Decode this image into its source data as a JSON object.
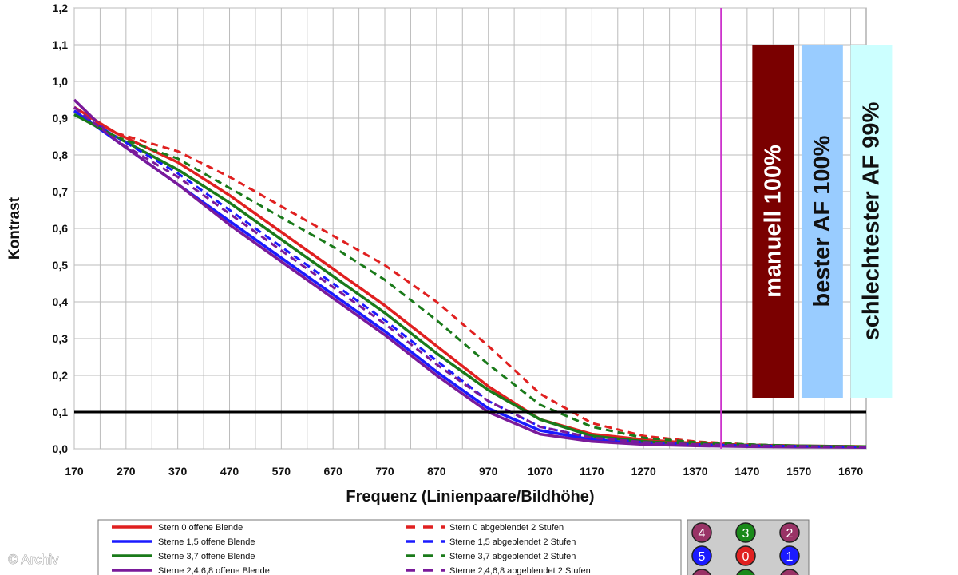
{
  "credit": "© Archiv",
  "chart_data": {
    "type": "line",
    "title": "",
    "xlabel": "Frequenz (Linienpaare/Bildhöhe)",
    "ylabel": "Kontrast",
    "xlim": [
      170,
      1700
    ],
    "ylim": [
      0,
      1.2
    ],
    "x_ticks": [
      "170",
      "270",
      "370",
      "470",
      "570",
      "670",
      "770",
      "870",
      "970",
      "1070",
      "1170",
      "1270",
      "1370",
      "1470",
      "1570",
      "1670"
    ],
    "y_ticks": [
      "0,0",
      "0,1",
      "0,2",
      "0,3",
      "0,4",
      "0,5",
      "0,6",
      "0,7",
      "0,8",
      "0,9",
      "1,0",
      "1,1",
      "1,2"
    ],
    "grid": true,
    "threshold_line": {
      "y": 0.1,
      "color": "#000000"
    },
    "marker_line": {
      "x": 1420,
      "color": "#cc33cc"
    },
    "series": [
      {
        "name": "Stern 0 offene Blende",
        "color": "#e02020",
        "dashed": false,
        "x": [
          170,
          250,
          370,
          470,
          570,
          670,
          770,
          870,
          970,
          1070,
          1170,
          1270,
          1370,
          1470,
          1570,
          1700
        ],
        "y": [
          0.93,
          0.86,
          0.78,
          0.69,
          0.59,
          0.49,
          0.39,
          0.28,
          0.17,
          0.08,
          0.04,
          0.025,
          0.015,
          0.01,
          0.008,
          0.006
        ]
      },
      {
        "name": "Sterne 1,5 offene Blende",
        "color": "#1a1aff",
        "dashed": false,
        "x": [
          170,
          250,
          370,
          470,
          570,
          670,
          770,
          870,
          970,
          1070,
          1170,
          1270,
          1370,
          1470,
          1570,
          1700
        ],
        "y": [
          0.92,
          0.84,
          0.72,
          0.62,
          0.52,
          0.42,
          0.32,
          0.21,
          0.11,
          0.05,
          0.025,
          0.015,
          0.01,
          0.008,
          0.006,
          0.005
        ]
      },
      {
        "name": "Sterne 3,7 offene Blende",
        "color": "#1a7a1a",
        "dashed": false,
        "x": [
          170,
          250,
          370,
          470,
          570,
          670,
          770,
          870,
          970,
          1070,
          1170,
          1270,
          1370,
          1470,
          1570,
          1700
        ],
        "y": [
          0.91,
          0.85,
          0.76,
          0.67,
          0.57,
          0.47,
          0.37,
          0.26,
          0.16,
          0.08,
          0.035,
          0.02,
          0.012,
          0.01,
          0.008,
          0.006
        ]
      },
      {
        "name": "Sterne 2,4,6,8 offene Blende",
        "color": "#7a1a9a",
        "dashed": false,
        "x": [
          170,
          250,
          370,
          470,
          570,
          670,
          770,
          870,
          970,
          1070,
          1170,
          1270,
          1370,
          1470,
          1570,
          1700
        ],
        "y": [
          0.95,
          0.84,
          0.72,
          0.61,
          0.51,
          0.41,
          0.31,
          0.2,
          0.1,
          0.04,
          0.02,
          0.012,
          0.008,
          0.006,
          0.005,
          0.004
        ]
      },
      {
        "name": "Stern 0 abgeblendet 2 Stufen",
        "color": "#e02020",
        "dashed": true,
        "x": [
          170,
          250,
          370,
          470,
          570,
          670,
          770,
          870,
          970,
          1070,
          1170,
          1270,
          1370,
          1470,
          1570,
          1700
        ],
        "y": [
          0.92,
          0.86,
          0.81,
          0.74,
          0.66,
          0.58,
          0.5,
          0.4,
          0.28,
          0.15,
          0.07,
          0.035,
          0.02,
          0.012,
          0.008,
          0.006
        ]
      },
      {
        "name": "Sterne 1,5 abgeblendet 2 Stufen",
        "color": "#1a1aff",
        "dashed": true,
        "x": [
          170,
          250,
          370,
          470,
          570,
          670,
          770,
          870,
          970,
          1070,
          1170,
          1270,
          1370,
          1470,
          1570,
          1700
        ],
        "y": [
          0.92,
          0.85,
          0.75,
          0.65,
          0.55,
          0.45,
          0.35,
          0.24,
          0.13,
          0.06,
          0.03,
          0.018,
          0.012,
          0.009,
          0.007,
          0.005
        ]
      },
      {
        "name": "Sterne 3,7 abgeblendet 2 Stufen",
        "color": "#1a7a1a",
        "dashed": true,
        "x": [
          170,
          250,
          370,
          470,
          570,
          670,
          770,
          870,
          970,
          1070,
          1170,
          1270,
          1370,
          1470,
          1570,
          1700
        ],
        "y": [
          0.91,
          0.85,
          0.79,
          0.71,
          0.63,
          0.55,
          0.46,
          0.35,
          0.23,
          0.12,
          0.06,
          0.03,
          0.018,
          0.012,
          0.008,
          0.006
        ]
      },
      {
        "name": "Sterne 2,4,6,8 abgeblendet 2 Stufen",
        "color": "#7a1a9a",
        "dashed": true,
        "x": [
          170,
          250,
          370,
          470,
          570,
          670,
          770,
          870,
          970,
          1070,
          1170,
          1270,
          1370,
          1470,
          1570,
          1700
        ],
        "y": [
          0.93,
          0.84,
          0.74,
          0.64,
          0.54,
          0.44,
          0.34,
          0.23,
          0.13,
          0.06,
          0.03,
          0.018,
          0.012,
          0.009,
          0.007,
          0.005
        ]
      }
    ],
    "bars": [
      {
        "label": "manuell 100%",
        "value": 1.1,
        "x_start": 1480,
        "x_end": 1560,
        "color": "#7a0000",
        "text_color": "#ffffff"
      },
      {
        "label": "bester AF 100%",
        "value": 1.1,
        "x_start": 1575,
        "x_end": 1655,
        "color": "#99ccff",
        "text_color": "#111111"
      },
      {
        "label": "schlechtester AF 99%",
        "value": 1.1,
        "x_start": 1670,
        "x_end": 1750,
        "color": "#ccffff",
        "text_color": "#111111"
      }
    ],
    "legend_placement": "bottom",
    "key_grid": {
      "cells": [
        {
          "label": "4",
          "color": "#993366"
        },
        {
          "label": "3",
          "color": "#1a8a1a"
        },
        {
          "label": "2",
          "color": "#993366"
        },
        {
          "label": "5",
          "color": "#1a1aff"
        },
        {
          "label": "0",
          "color": "#e02020"
        },
        {
          "label": "1",
          "color": "#1a1aff"
        },
        {
          "label": "",
          "color": "#993366"
        },
        {
          "label": "",
          "color": "#1a8a1a"
        },
        {
          "label": "",
          "color": "#993366"
        }
      ]
    }
  }
}
